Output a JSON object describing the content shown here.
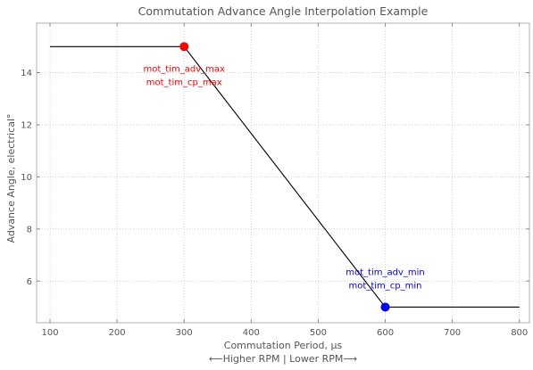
{
  "chart_data": {
    "type": "line",
    "title": "Commutation Advance Angle Interpolation Example",
    "xlabel": "Commutation Period, μs",
    "xlabel2": "⟵Higher RPM | Lower RPM⟶",
    "ylabel": "Advance Angle, electrical°",
    "xlim": [
      80,
      815
    ],
    "ylim": [
      4.4,
      15.9
    ],
    "xticks": [
      100,
      200,
      300,
      400,
      500,
      600,
      700,
      800
    ],
    "yticks": [
      6,
      8,
      10,
      12,
      14
    ],
    "grid": true,
    "series": [
      {
        "x": [
          100,
          300,
          600,
          800
        ],
        "y": [
          15,
          15,
          5,
          5
        ],
        "color": "#000000"
      }
    ],
    "points": [
      {
        "x": 300,
        "y": 15,
        "color": "#ff0000",
        "labels": [
          "mot_tim_adv_max",
          "mot_tim_cp_max"
        ]
      },
      {
        "x": 600,
        "y": 5,
        "color": "#0000ff",
        "labels": [
          "mot_tim_adv_min",
          "mot_tim_cp_min"
        ]
      }
    ]
  }
}
